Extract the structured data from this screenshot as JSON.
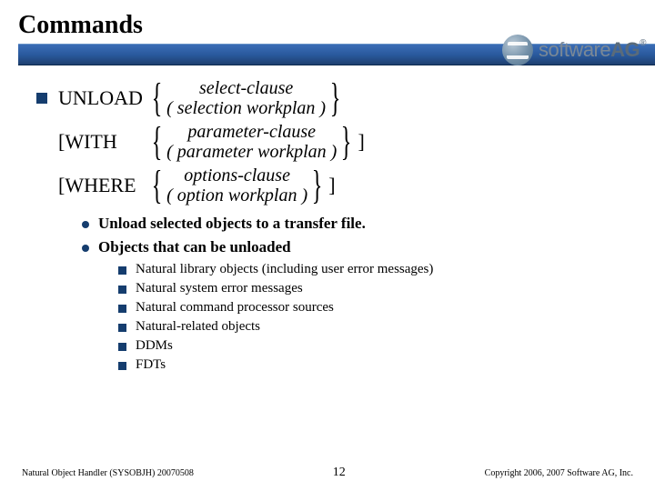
{
  "title": "Commands",
  "logo": {
    "pre": "software",
    "bold": "AG"
  },
  "syntax": {
    "rows": [
      {
        "bullet": true,
        "keyword": "UNLOAD",
        "top": "select-clause",
        "bottom": "( selection workplan )",
        "trail": ""
      },
      {
        "bullet": false,
        "keyword": "[WITH",
        "top": "parameter-clause",
        "bottom": "( parameter workplan )",
        "trail": "]"
      },
      {
        "bullet": false,
        "keyword": "[WHERE",
        "top": "options-clause",
        "bottom": "( option workplan )",
        "trail": "]"
      }
    ]
  },
  "level1": [
    "Unload selected objects to a transfer file.",
    "Objects that can be unloaded"
  ],
  "level2": [
    "Natural library objects (including user error messages)",
    "Natural system error messages",
    "Natural command processor sources",
    "Natural-related objects",
    "DDMs",
    "FDTs"
  ],
  "footer": {
    "left": "Natural Object Handler (SYSOBJH) 20070508",
    "page": "12",
    "right": "Copyright 2006, 2007 Software AG, Inc."
  }
}
